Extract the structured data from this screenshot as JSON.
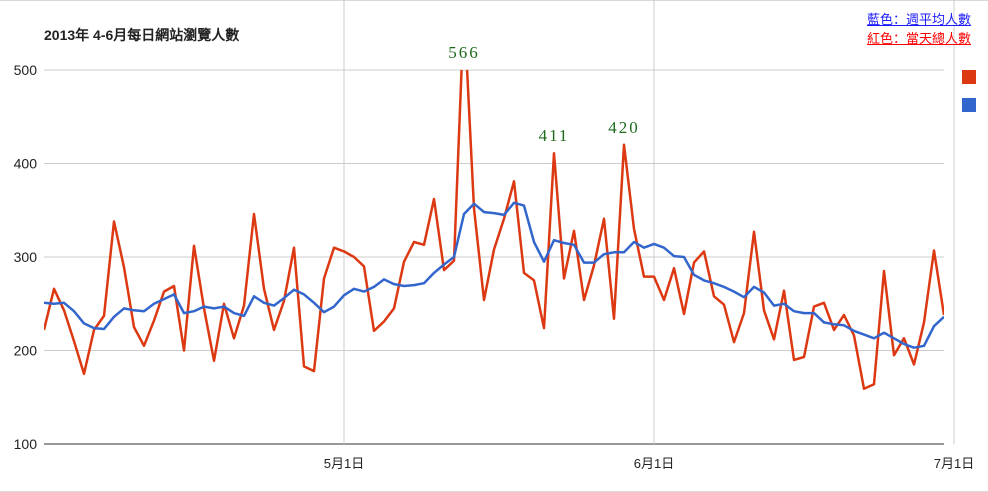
{
  "chart_data": {
    "type": "line",
    "title": "2013年 4-6月每日網站瀏覽人數",
    "x_tick_labels": [
      "5月1日",
      "6月1日",
      "7月1日"
    ],
    "x_tick_days": [
      30,
      61,
      91
    ],
    "ylim": [
      100,
      500
    ],
    "y_ticks": [
      100,
      200,
      300,
      400,
      500
    ],
    "grid": true,
    "legend_position": "right",
    "annotation_lines": [
      "藍色：週平均人數",
      "紅色：當天總人數"
    ],
    "peak_labels": [
      {
        "day": 42,
        "value": 566,
        "text": "566"
      },
      {
        "day": 51,
        "value": 411,
        "text": "411"
      },
      {
        "day": 58,
        "value": 420,
        "text": "420"
      }
    ],
    "series": [
      {
        "color": "#dc3912",
        "values": [
          222,
          266,
          243,
          210,
          175,
          222,
          237,
          338,
          289,
          225,
          205,
          232,
          263,
          269,
          200,
          312,
          245,
          189,
          250,
          213,
          248,
          346,
          266,
          222,
          253,
          310,
          183,
          178,
          277,
          310,
          306,
          300,
          290,
          221,
          231,
          245,
          295,
          316,
          313,
          362,
          286,
          296,
          566,
          352,
          254,
          308,
          341,
          381,
          283,
          275,
          224,
          411,
          277,
          328,
          254,
          291,
          341,
          234,
          420,
          330,
          279,
          279,
          254,
          288,
          239,
          294,
          306,
          258,
          249,
          209,
          240,
          327,
          243,
          212,
          264,
          190,
          193,
          247,
          251,
          222,
          238,
          216,
          159,
          164,
          285,
          195,
          213,
          185,
          230,
          307,
          238
        ]
      },
      {
        "color": "#3366cc",
        "values": [
          251,
          250,
          251,
          242,
          229,
          224,
          223,
          236,
          245,
          243,
          242,
          250,
          255,
          260,
          240,
          242,
          247,
          245,
          247,
          240,
          237,
          258,
          251,
          248,
          256,
          265,
          260,
          251,
          241,
          247,
          259,
          266,
          263,
          268,
          276,
          271,
          269,
          270,
          272,
          283,
          292,
          300,
          346,
          357,
          348,
          347,
          345,
          358,
          355,
          316,
          295,
          318,
          315,
          313,
          294,
          294,
          303,
          305,
          305,
          316,
          310,
          314,
          310,
          301,
          300,
          281,
          275,
          272,
          268,
          263,
          257,
          268,
          262,
          248,
          250,
          242,
          240,
          240,
          230,
          228,
          227,
          221,
          217,
          213,
          219,
          213,
          207,
          203,
          205,
          226,
          236
        ]
      }
    ]
  }
}
